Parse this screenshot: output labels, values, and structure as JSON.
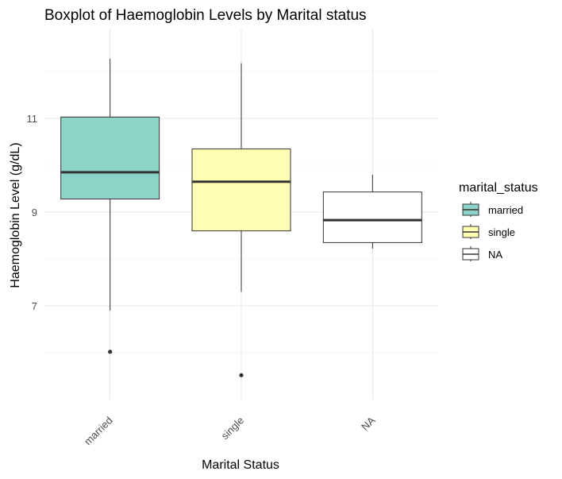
{
  "chart_data": {
    "type": "boxplot",
    "title": "Boxplot of Haemoglobin Levels by Marital status",
    "xlabel": "Marital Status",
    "ylabel": "Haemoglobin Level (g/dL)",
    "ylim": [
      5.0,
      12.9
    ],
    "y_ticks": [
      7,
      9,
      11
    ],
    "y_minor_gridlines": [
      6,
      8,
      10,
      12
    ],
    "grid": true,
    "categories": [
      "married",
      "single",
      "NA"
    ],
    "boxes": [
      {
        "category": "married",
        "whisker_low": 6.9,
        "q1": 9.28,
        "median": 9.85,
        "q3": 11.03,
        "whisker_high": 12.27,
        "outliers": [
          6.02
        ],
        "fill": "#8DD3C7"
      },
      {
        "category": "single",
        "whisker_low": 7.3,
        "q1": 8.6,
        "median": 9.65,
        "q3": 10.35,
        "whisker_high": 12.18,
        "outliers": [
          5.52
        ],
        "fill": "#FFFFB3"
      },
      {
        "category": "NA",
        "whisker_low": 8.22,
        "q1": 8.35,
        "median": 8.83,
        "q3": 9.43,
        "whisker_high": 9.8,
        "outliers": [],
        "fill": "#FFFFFF"
      }
    ],
    "legend": {
      "title": "marital_status",
      "position": "right",
      "entries": [
        {
          "label": "married",
          "fill": "#8DD3C7"
        },
        {
          "label": "single",
          "fill": "#FFFFB3"
        },
        {
          "label": "NA",
          "fill": "#FFFFFF"
        }
      ]
    }
  }
}
